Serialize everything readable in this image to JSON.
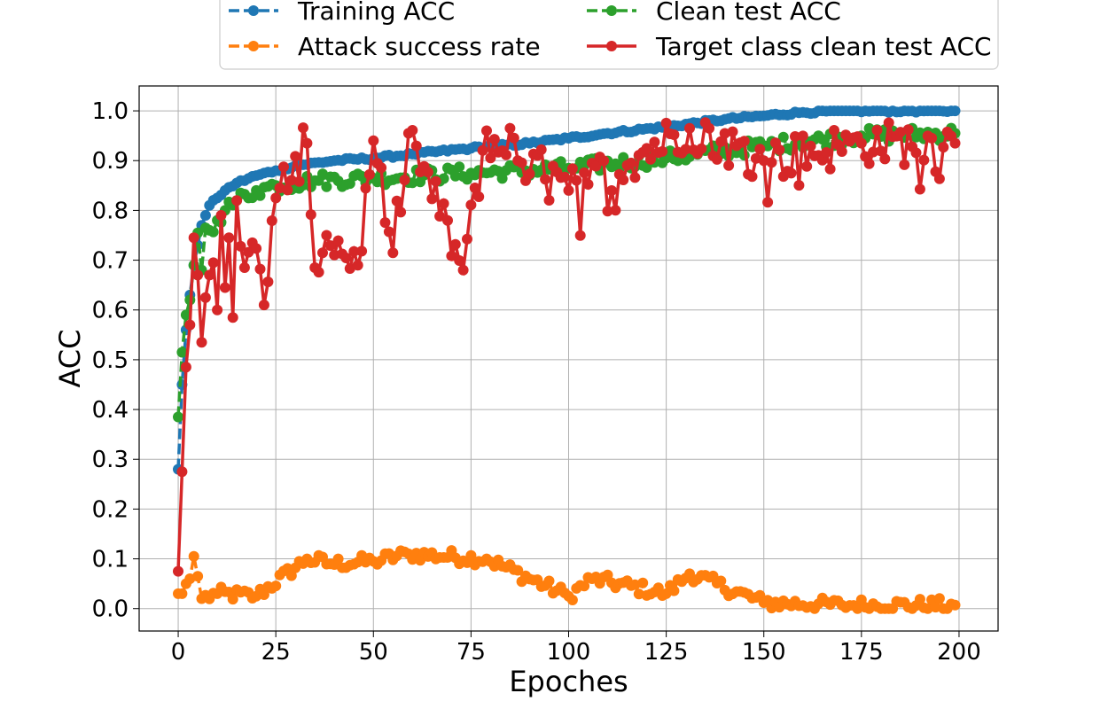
{
  "chart_data": {
    "type": "line",
    "title": "",
    "xlabel": "Epoches",
    "ylabel": "ACC",
    "xlim": [
      -10,
      210
    ],
    "ylim": [
      -0.045,
      1.05
    ],
    "xticks": [
      0,
      25,
      50,
      75,
      100,
      125,
      150,
      175,
      200
    ],
    "yticks": [
      0.0,
      0.1,
      0.2,
      0.3,
      0.4,
      0.5,
      0.6,
      0.7,
      0.8,
      0.9,
      1.0
    ],
    "grid": true,
    "legend_position": "top-center, two columns",
    "series": [
      {
        "name": "Training ACC",
        "color": "#1f77b4",
        "line_style": "dashed",
        "marker": "circle",
        "anchors": [
          [
            0,
            0.28
          ],
          [
            1,
            0.45
          ],
          [
            2,
            0.56
          ],
          [
            3,
            0.63
          ],
          [
            4,
            0.69
          ],
          [
            5,
            0.73
          ],
          [
            6,
            0.77
          ],
          [
            7,
            0.79
          ],
          [
            8,
            0.81
          ],
          [
            10,
            0.825
          ],
          [
            12,
            0.84
          ],
          [
            15,
            0.855
          ],
          [
            20,
            0.87
          ],
          [
            25,
            0.88
          ],
          [
            30,
            0.89
          ],
          [
            40,
            0.9
          ],
          [
            50,
            0.905
          ],
          [
            60,
            0.913
          ],
          [
            75,
            0.925
          ],
          [
            90,
            0.935
          ],
          [
            100,
            0.945
          ],
          [
            110,
            0.955
          ],
          [
            125,
            0.968
          ],
          [
            140,
            0.983
          ],
          [
            150,
            0.99
          ],
          [
            160,
            0.997
          ],
          [
            170,
            1.0
          ],
          [
            199,
            1.0
          ]
        ],
        "noise": 0.003
      },
      {
        "name": "Clean test ACC",
        "color": "#2ca02c",
        "line_style": "dashed",
        "marker": "circle",
        "anchors": [
          [
            0,
            0.385
          ],
          [
            1,
            0.515
          ],
          [
            2,
            0.59
          ],
          [
            3,
            0.62
          ],
          [
            4,
            0.69
          ],
          [
            5,
            0.755
          ],
          [
            6,
            0.68
          ],
          [
            7,
            0.765
          ],
          [
            8,
            0.76
          ],
          [
            10,
            0.78
          ],
          [
            12,
            0.8
          ],
          [
            15,
            0.82
          ],
          [
            20,
            0.84
          ],
          [
            25,
            0.85
          ],
          [
            35,
            0.86
          ],
          [
            50,
            0.865
          ],
          [
            75,
            0.875
          ],
          [
            100,
            0.885
          ],
          [
            125,
            0.905
          ],
          [
            150,
            0.93
          ],
          [
            175,
            0.95
          ],
          [
            199,
            0.955
          ]
        ],
        "noise": 0.015
      },
      {
        "name": "Target class clean test ACC",
        "color": "#d62728",
        "line_style": "solid",
        "marker": "circle",
        "anchors": [
          [
            0,
            0.075
          ],
          [
            1,
            0.275
          ],
          [
            2,
            0.485
          ],
          [
            3,
            0.57
          ],
          [
            4,
            0.745
          ],
          [
            5,
            0.67
          ],
          [
            6,
            0.535
          ],
          [
            7,
            0.625
          ],
          [
            8,
            0.67
          ],
          [
            9,
            0.695
          ],
          [
            10,
            0.6
          ],
          [
            11,
            0.79
          ],
          [
            12,
            0.645
          ],
          [
            13,
            0.745
          ],
          [
            14,
            0.585
          ],
          [
            15,
            0.82
          ],
          [
            17,
            0.685
          ],
          [
            19,
            0.735
          ],
          [
            22,
            0.61
          ],
          [
            25,
            0.825
          ],
          [
            33,
            0.935
          ],
          [
            35,
            0.685
          ],
          [
            38,
            0.75
          ],
          [
            46,
            0.69
          ],
          [
            50,
            0.94
          ],
          [
            55,
            0.715
          ],
          [
            59,
            0.955
          ],
          [
            73,
            0.68
          ],
          [
            79,
            0.96
          ],
          [
            100,
            0.84
          ],
          [
            131,
            0.965
          ],
          [
            150,
            0.9
          ],
          [
            175,
            0.935
          ],
          [
            199,
            0.935
          ]
        ],
        "noise": 0.045
      },
      {
        "name": "Attack success rate",
        "color": "#ff7f0e",
        "line_style": "dashed",
        "marker": "circle",
        "anchors": [
          [
            0,
            0.03
          ],
          [
            1,
            0.03
          ],
          [
            2,
            0.05
          ],
          [
            3,
            0.06
          ],
          [
            4,
            0.105
          ],
          [
            5,
            0.065
          ],
          [
            6,
            0.02
          ],
          [
            10,
            0.03
          ],
          [
            20,
            0.025
          ],
          [
            33,
            0.1
          ],
          [
            39,
            0.09
          ],
          [
            50,
            0.095
          ],
          [
            59,
            0.11
          ],
          [
            79,
            0.1
          ],
          [
            100,
            0.025
          ],
          [
            106,
            0.06
          ],
          [
            125,
            0.03
          ],
          [
            131,
            0.07
          ],
          [
            150,
            0.012
          ],
          [
            170,
            0.007
          ],
          [
            199,
            0.007
          ]
        ],
        "noise": 0.014
      }
    ],
    "legend_order": [
      "Training ACC",
      "Clean test ACC",
      "Attack success rate",
      "Target class clean test ACC"
    ]
  }
}
